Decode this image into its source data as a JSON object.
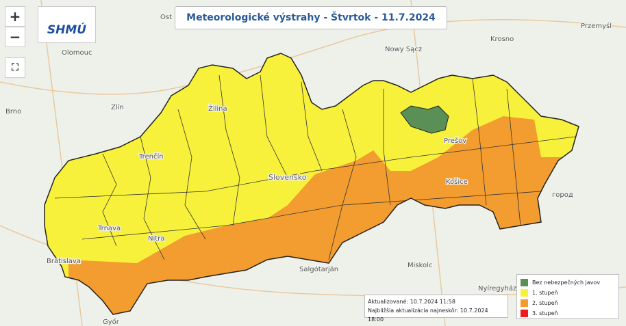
{
  "header": {
    "title": "Meteorologické výstrahy - Štvrtok - 11.7.2024",
    "logo": "SHMÚ"
  },
  "controls": {
    "zoom_in": "+",
    "zoom_out": "−"
  },
  "place_labels": [
    "Ost",
    "Olomouc",
    "Nowy Sącz",
    "Krosno",
    "Przemyśl",
    "Brno",
    "Zlín",
    "Žilina",
    "Trenčín",
    "Slovensko",
    "Prešov",
    "Košice",
    "Trnava",
    "Nitra",
    "Bratislava",
    "Salgótarján",
    "Miskolc",
    "Nyíregyháza",
    "Győr",
    "город"
  ],
  "update_info": {
    "updated": "Aktualizované: 10.7.2024 11:58",
    "next_update": "Najbližšia aktualizácia najneskôr: 10.7.2024 18:00"
  },
  "legend": {
    "items": [
      {
        "label": "Bez nebezpečných javov",
        "color": "#5a8f55"
      },
      {
        "label": "1. stupeň",
        "color": "#f7f13b"
      },
      {
        "label": "2. stupeň",
        "color": "#f39c2f"
      },
      {
        "label": "3. stupeň",
        "color": "#ee1c1c"
      }
    ]
  }
}
